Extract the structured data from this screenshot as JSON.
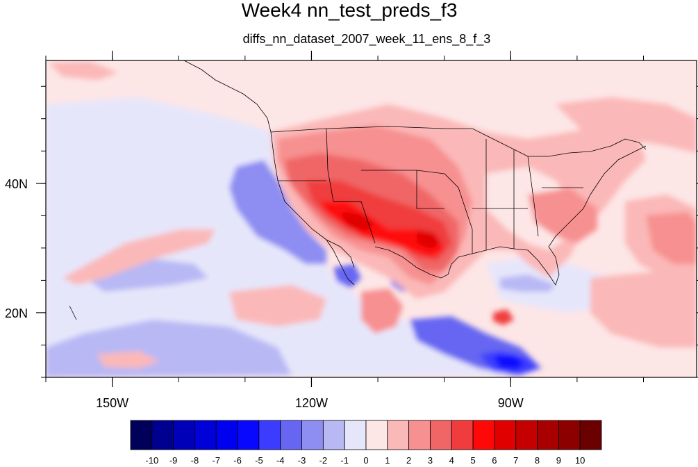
{
  "title": "Week4 nn_test_preds_f3",
  "subtitle": "diffs_nn_dataset_2007_week_11_ens_8_f_3",
  "map": {
    "lon_range": [
      -160,
      -62
    ],
    "lat_range": [
      10,
      59
    ],
    "x_ticks": [
      {
        "lon": -150,
        "label": "150W"
      },
      {
        "lon": -120,
        "label": "120W"
      },
      {
        "lon": -90,
        "label": "90W"
      }
    ],
    "y_ticks": [
      {
        "lat": 40,
        "label": "40N"
      },
      {
        "lat": 20,
        "label": "20N"
      }
    ]
  },
  "colorbar": {
    "levels": [
      "-10",
      "-9",
      "-8",
      "-7",
      "-6",
      "-5",
      "-4",
      "-3",
      "-2",
      "-1",
      "0",
      "1",
      "2",
      "3",
      "4",
      "5",
      "6",
      "7",
      "8",
      "9",
      "10"
    ],
    "colors": [
      "#00005a",
      "#000090",
      "#0000b8",
      "#0000d8",
      "#0000f0",
      "#0808ff",
      "#3c3cff",
      "#6666f2",
      "#8d8df2",
      "#b8b8f5",
      "#e6e6fb",
      "#fde6e6",
      "#fbb8b8",
      "#f79090",
      "#f06666",
      "#f03c3c",
      "#ff0808",
      "#e00000",
      "#c40000",
      "#a80000",
      "#8c0000",
      "#6a0000"
    ]
  }
}
